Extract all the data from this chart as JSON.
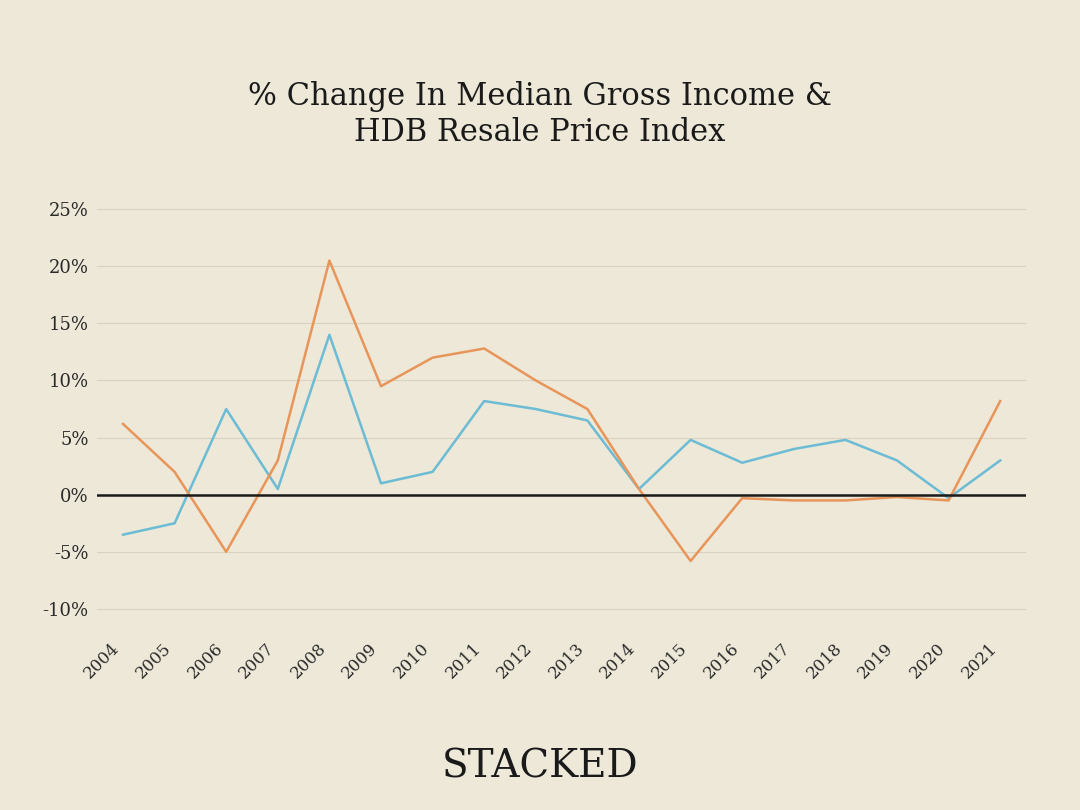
{
  "title": "% Change In Median Gross Income &\nHDB Resale Price Index",
  "background_color": "#ede8d8",
  "years": [
    2004,
    2005,
    2006,
    2007,
    2008,
    2009,
    2010,
    2011,
    2012,
    2013,
    2014,
    2015,
    2016,
    2017,
    2018,
    2019,
    2020,
    2021
  ],
  "median_single": [
    -3.5,
    -2.5,
    7.5,
    0.5,
    14.0,
    1.0,
    2.0,
    8.2,
    7.5,
    6.5,
    0.5,
    4.8,
    2.8,
    4.0,
    4.8,
    3.0,
    -0.3,
    3.0
  ],
  "hdb_resale_index": [
    6.2,
    2.0,
    -5.0,
    3.0,
    20.5,
    9.5,
    12.0,
    12.8,
    10.0,
    7.5,
    0.5,
    -5.8,
    -0.3,
    -0.5,
    -0.5,
    -0.2,
    -0.5,
    8.2
  ],
  "median_color": "#6bbcd4",
  "hdb_color": "#e8955a",
  "ylim": [
    -12,
    27
  ],
  "yticks": [
    -10,
    -5,
    0,
    5,
    10,
    15,
    20,
    25
  ],
  "ytick_labels": [
    "-10%",
    "-5%",
    "0%",
    "5%",
    "10%",
    "15%",
    "20%",
    "25%"
  ],
  "watermark": "STACKED",
  "grid_color": "#d8d2be",
  "line_width": 1.8,
  "zero_line_color": "#1a1a1a"
}
